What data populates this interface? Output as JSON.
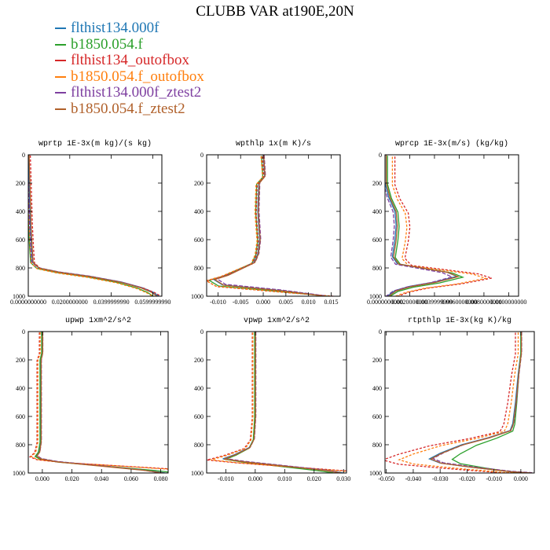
{
  "title": "CLUBB VAR at190E,20N",
  "legend": [
    {
      "label": "flthist134.000f",
      "color": "#1f77b4"
    },
    {
      "label": "b1850.054.f",
      "color": "#2ca02c"
    },
    {
      "label": "flthist134_outofbox",
      "color": "#d62728"
    },
    {
      "label": "b1850.054.f_outofbox",
      "color": "#ff7f0e"
    },
    {
      "label": "flthist134.000f_ztest2",
      "color": "#7e3fa0"
    },
    {
      "label": "b1850.054.f_ztest2",
      "color": "#b0602a"
    }
  ],
  "chart_data": [
    {
      "type": "line",
      "title": "wprtp  1E-3x(m kg)/(s kg)",
      "xlim": [
        0,
        0.0644
      ],
      "ylim": [
        1000,
        0
      ],
      "xticks": [
        0,
        0.02,
        0.04,
        0.06
      ],
      "xtick_labels": [
        "0.0000000000",
        "0.0200000000",
        "0.0399999990",
        "0.0599999990"
      ],
      "yticks": [
        0,
        200,
        400,
        600,
        800,
        1000
      ],
      "base": [
        [
          0,
          0
        ],
        [
          0.0003,
          150
        ],
        [
          0.0006,
          300
        ],
        [
          0.001,
          500
        ],
        [
          0.0015,
          650
        ],
        [
          0.002,
          760
        ],
        [
          0.005,
          800
        ],
        [
          0.015,
          830
        ],
        [
          0.03,
          860
        ],
        [
          0.045,
          900
        ],
        [
          0.055,
          940
        ],
        [
          0.06,
          970
        ],
        [
          0.063,
          1000
        ]
      ],
      "series": [
        {
          "name": "flthist134.000f",
          "dx": 0,
          "sx": 1.0,
          "dy": 0
        },
        {
          "name": "b1850.054.f",
          "dx": -0.0008,
          "sx": 0.97,
          "dy": 3
        },
        {
          "name": "flthist134_outofbox",
          "dx": 0.001,
          "sx": 1.0,
          "dy": 5
        },
        {
          "name": "b1850.054.f_outofbox",
          "dx": -0.0005,
          "sx": 0.96,
          "dy": 6
        },
        {
          "name": "flthist134.000f_ztest2",
          "dx": -0.0003,
          "sx": 0.99,
          "dy": -2
        },
        {
          "name": "b1850.054.f_ztest2",
          "dx": 0.0004,
          "sx": 0.98,
          "dy": 1
        }
      ]
    },
    {
      "type": "line",
      "title": "wpthlp  1x(m K)/s",
      "xlim": [
        -0.0125,
        0.017
      ],
      "ylim": [
        1000,
        0
      ],
      "xticks": [
        -0.01,
        -0.005,
        0,
        0.005,
        0.01,
        0.015
      ],
      "xtick_labels": [
        "-0.010",
        "-0.005",
        "0.000",
        "0.005",
        "0.010",
        "0.015"
      ],
      "yticks": [
        0,
        200,
        400,
        600,
        800,
        1000
      ],
      "base": [
        [
          0,
          0
        ],
        [
          0.0003,
          150
        ],
        [
          -0.001,
          200
        ],
        [
          -0.0012,
          400
        ],
        [
          -0.0008,
          600
        ],
        [
          -0.0012,
          700
        ],
        [
          -0.002,
          760
        ],
        [
          -0.008,
          850
        ],
        [
          -0.011,
          880
        ],
        [
          -0.009,
          920
        ],
        [
          0.004,
          960
        ],
        [
          0.014,
          1000
        ]
      ],
      "series": [
        {
          "name": "flthist134.000f",
          "dx": 0,
          "sx": 1.0,
          "dy": 0
        },
        {
          "name": "b1850.054.f",
          "dx": -0.0004,
          "sx": 1.05,
          "dy": 8
        },
        {
          "name": "flthist134_outofbox",
          "dx": -0.0002,
          "sx": 1.12,
          "dy": 12
        },
        {
          "name": "b1850.054.f_outofbox",
          "dx": -0.0005,
          "sx": 1.1,
          "dy": 10
        },
        {
          "name": "flthist134.000f_ztest2",
          "dx": 0.0002,
          "sx": 0.95,
          "dy": -4
        },
        {
          "name": "b1850.054.f_ztest2",
          "dx": 0.0001,
          "sx": 0.98,
          "dy": 2
        }
      ]
    },
    {
      "type": "line",
      "title": "wprcp  1E-3x(m/s) (kg/kg)",
      "xlim": [
        0,
        0.0108
      ],
      "ylim": [
        1000,
        0
      ],
      "xticks": [
        0,
        0.002,
        0.004,
        0.006,
        0.008,
        0.01
      ],
      "xtick_labels": [
        "0.0000000000",
        "0.0020000000",
        "0.0039999999",
        "0.0060000000",
        "0.0080000000",
        "0.0100000000"
      ],
      "yticks": [
        0,
        200,
        400,
        600,
        800,
        1000
      ],
      "base": [
        [
          0,
          0
        ],
        [
          0,
          200
        ],
        [
          0.0003,
          300
        ],
        [
          0.0008,
          400
        ],
        [
          0.0009,
          500
        ],
        [
          0.0008,
          600
        ],
        [
          0.0006,
          720
        ],
        [
          0.001,
          770
        ],
        [
          0.003,
          800
        ],
        [
          0.005,
          830
        ],
        [
          0.0058,
          860
        ],
        [
          0.004,
          900
        ],
        [
          0.002,
          930
        ],
        [
          0.0008,
          960
        ],
        [
          0.0002,
          1000
        ]
      ],
      "series": [
        {
          "name": "flthist134.000f",
          "dx": 0,
          "sx": 1.0,
          "dy": 0
        },
        {
          "name": "b1850.054.f",
          "dx": 0.0002,
          "sx": 1.05,
          "dy": 6
        },
        {
          "name": "flthist134_outofbox",
          "dx": 0.0008,
          "sx": 1.35,
          "dy": 12
        },
        {
          "name": "b1850.054.f_outofbox",
          "dx": 0.0006,
          "sx": 1.3,
          "dy": 14
        },
        {
          "name": "flthist134.000f_ztest2",
          "dx": -0.0001,
          "sx": 0.95,
          "dy": 4
        },
        {
          "name": "b1850.054.f_ztest2",
          "dx": 0.0001,
          "sx": 1.0,
          "dy": 2
        }
      ]
    },
    {
      "type": "line",
      "title": "upwp  1xm^2/s^2",
      "xlim": [
        -0.0095,
        0.085
      ],
      "ylim": [
        1000,
        0
      ],
      "xticks": [
        0,
        0.02,
        0.04,
        0.06,
        0.08
      ],
      "xtick_labels": [
        "0.000",
        "0.020",
        "0.040",
        "0.060",
        "0.080"
      ],
      "yticks": [
        0,
        200,
        400,
        600,
        800,
        1000
      ],
      "base": [
        [
          0,
          0
        ],
        [
          0,
          150
        ],
        [
          -0.001,
          200
        ],
        [
          -0.001,
          400
        ],
        [
          -0.001,
          600
        ],
        [
          -0.001,
          780
        ],
        [
          -0.002,
          850
        ],
        [
          -0.004,
          880
        ],
        [
          -0.001,
          900
        ],
        [
          0.01,
          920
        ],
        [
          0.04,
          950
        ],
        [
          0.07,
          980
        ],
        [
          0.083,
          1000
        ]
      ],
      "series": [
        {
          "name": "flthist134.000f",
          "dx": 0,
          "sx": 1.0,
          "dy": 0
        },
        {
          "name": "b1850.054.f",
          "dx": -0.0005,
          "sx": 1.1,
          "dy": 3
        },
        {
          "name": "flthist134_outofbox",
          "dx": -0.002,
          "sx": 1.6,
          "dy": 6
        },
        {
          "name": "b1850.054.f_outofbox",
          "dx": -0.0015,
          "sx": 1.5,
          "dy": 5
        },
        {
          "name": "flthist134.000f_ztest2",
          "dx": 0.0003,
          "sx": 0.95,
          "dy": -2
        },
        {
          "name": "b1850.054.f_ztest2",
          "dx": 0.0002,
          "sx": 0.98,
          "dy": 1
        }
      ]
    },
    {
      "type": "line",
      "title": "vpwp  1xm^2/s^2",
      "xlim": [
        -0.0165,
        0.031
      ],
      "ylim": [
        1000,
        0
      ],
      "xticks": [
        -0.01,
        0,
        0.01,
        0.02,
        0.03
      ],
      "xtick_labels": [
        "-0.010",
        "0.000",
        "0.010",
        "0.020",
        "0.030"
      ],
      "yticks": [
        0,
        200,
        400,
        600,
        800,
        1000
      ],
      "base": [
        [
          0,
          0
        ],
        [
          0,
          150
        ],
        [
          0,
          200
        ],
        [
          0,
          400
        ],
        [
          0,
          600
        ],
        [
          -0.0005,
          760
        ],
        [
          -0.002,
          820
        ],
        [
          -0.007,
          870
        ],
        [
          -0.011,
          900
        ],
        [
          -0.004,
          920
        ],
        [
          0.01,
          950
        ],
        [
          0.024,
          980
        ],
        [
          0.03,
          1000
        ]
      ],
      "series": [
        {
          "name": "flthist134.000f",
          "dx": 0,
          "sx": 1.0,
          "dy": 0
        },
        {
          "name": "b1850.054.f",
          "dx": -0.0002,
          "sx": 0.9,
          "dy": 4
        },
        {
          "name": "flthist134_outofbox",
          "dx": -0.001,
          "sx": 1.4,
          "dy": 8
        },
        {
          "name": "b1850.054.f_outofbox",
          "dx": -0.0008,
          "sx": 1.3,
          "dy": 7
        },
        {
          "name": "flthist134.000f_ztest2",
          "dx": 0.0002,
          "sx": 0.95,
          "dy": -3
        },
        {
          "name": "b1850.054.f_ztest2",
          "dx": 0.0001,
          "sx": 0.97,
          "dy": 1
        }
      ]
    },
    {
      "type": "line",
      "title": "rtpthlp  1E-3x(kg K)/kg",
      "xlim": [
        -0.0505,
        0.005
      ],
      "ylim": [
        1000,
        0
      ],
      "xticks": [
        -0.05,
        -0.04,
        -0.03,
        -0.02,
        -0.01,
        0
      ],
      "xtick_labels": [
        "-0.050",
        "-0.040",
        "-0.030",
        "-0.020",
        "-0.010",
        "0.000"
      ],
      "yticks": [
        0,
        200,
        400,
        600,
        800,
        1000
      ],
      "base": [
        [
          0,
          0
        ],
        [
          0,
          150
        ],
        [
          -0.001,
          300
        ],
        [
          -0.002,
          500
        ],
        [
          -0.003,
          650
        ],
        [
          -0.004,
          700
        ],
        [
          -0.012,
          750
        ],
        [
          -0.022,
          800
        ],
        [
          -0.03,
          860
        ],
        [
          -0.034,
          900
        ],
        [
          -0.03,
          930
        ],
        [
          -0.018,
          960
        ],
        [
          -0.004,
          990
        ],
        [
          0.004,
          1000
        ]
      ],
      "series": [
        {
          "name": "flthist134.000f",
          "dx": 0,
          "sx": 1.0,
          "dy": 0
        },
        {
          "name": "b1850.054.f",
          "dx": 0,
          "sx": 0.75,
          "dy": 4
        },
        {
          "name": "flthist134_outofbox",
          "dx": -0.002,
          "sx": 1.45,
          "dy": 8
        },
        {
          "name": "b1850.054.f_outofbox",
          "dx": -0.001,
          "sx": 1.3,
          "dy": 6
        },
        {
          "name": "flthist134.000f_ztest2",
          "dx": 0.0003,
          "sx": 0.97,
          "dy": -2
        },
        {
          "name": "b1850.054.f_ztest2",
          "dx": 0.0002,
          "sx": 0.99,
          "dy": 1
        }
      ]
    }
  ]
}
